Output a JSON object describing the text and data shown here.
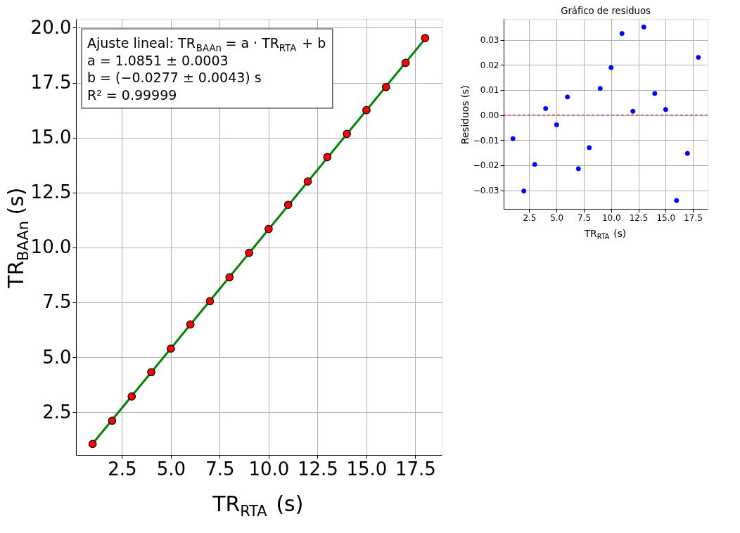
{
  "chart_data": [
    {
      "type": "scatter",
      "xlabel": "TR$_{RTA}$ (s)",
      "ylabel": "TR$_{BAAn}$ (s)",
      "annotations": [
        "Ajuste lineal: TR$_{BAAn}$ = a · TR$_{RTA}$ + b",
        "a = 1.0851 ± 0.0003",
        "b = (−0.0277 ± 0.0043) s",
        "R² = 0.99999"
      ],
      "x": [
        1,
        2,
        3,
        4,
        5,
        6,
        7,
        8,
        9,
        10,
        11,
        12,
        13,
        14,
        15,
        16,
        17,
        18
      ],
      "series": [
        {
          "type": "line",
          "color": "#008000",
          "x": [
            1,
            18
          ],
          "values": [
            1.06,
            19.5
          ],
          "line_style": "solid"
        },
        {
          "type": "scatter",
          "color": "#ff0000",
          "marker": "circle",
          "values": [
            1.05,
            2.11,
            3.21,
            4.32,
            5.39,
            6.49,
            7.55,
            8.64,
            9.75,
            10.84,
            11.94,
            13.0,
            14.11,
            15.17,
            16.25,
            17.3,
            18.4,
            19.53
          ]
        }
      ],
      "xlim": [
        0.15,
        18.85
      ],
      "ylim": [
        0.55,
        20.4
      ],
      "xticks": [
        2.5,
        {
          "value": 5,
          "label": "5.0"
        },
        7.5,
        {
          "value": 10,
          "label": "10.0"
        },
        12.5,
        {
          "value": 15,
          "label": "15.0"
        },
        17.5
      ],
      "yticks": [
        2.5,
        {
          "value": 5,
          "label": "5.0"
        },
        7.5,
        {
          "value": 10,
          "label": "10.0"
        },
        12.5,
        {
          "value": 15,
          "label": "15.0"
        },
        17.5,
        {
          "value": 20,
          "label": "20.0"
        }
      ],
      "grid": true
    },
    {
      "type": "scatter",
      "title": "Gráfico de residuos",
      "xlabel": "TR$_{RTA}$ (s)",
      "ylabel": "Residuos (s)",
      "x": [
        1,
        2,
        3,
        4,
        5,
        6,
        7,
        8,
        9,
        10,
        11,
        12,
        13,
        14,
        15,
        16,
        17,
        18
      ],
      "values": [
        -0.0094,
        -0.0303,
        -0.0197,
        0.0026,
        -0.0039,
        0.0072,
        -0.0214,
        -0.013,
        0.0106,
        0.0189,
        0.0325,
        0.0015,
        0.0351,
        0.0086,
        0.0022,
        -0.0341,
        -0.0153,
        0.023
      ],
      "color": "#0000ff",
      "ref_lines": [
        {
          "axis": "y",
          "value": 0,
          "color": "#ff0000",
          "line_style": "dashed"
        }
      ],
      "xlim": [
        0.15,
        18.85
      ],
      "ylim": [
        -0.0374,
        0.0383
      ],
      "xticks": [
        2.5,
        {
          "value": 5,
          "label": "5.0"
        },
        7.5,
        {
          "value": 10,
          "label": "10.0"
        },
        12.5,
        {
          "value": 15,
          "label": "15.0"
        },
        17.5
      ],
      "yticks": [
        {
          "value": -0.03,
          "label": "−0.03"
        },
        {
          "value": -0.02,
          "label": "−0.02"
        },
        {
          "value": -0.01,
          "label": "−0.01"
        },
        {
          "value": 0,
          "label": "0.00"
        },
        0.01,
        0.02,
        0.03
      ],
      "grid": true,
      "marker": "circle"
    }
  ]
}
